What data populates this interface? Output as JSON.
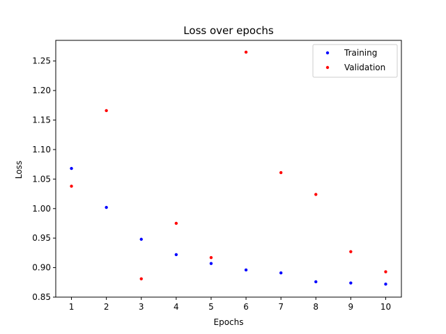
{
  "chart_data": {
    "type": "scatter",
    "title": "Loss over epochs",
    "xlabel": "Epochs",
    "ylabel": "Loss",
    "xlim": [
      0.55,
      10.45
    ],
    "ylim": [
      0.85,
      1.285
    ],
    "xticks": [
      1,
      2,
      3,
      4,
      5,
      6,
      7,
      8,
      9,
      10
    ],
    "yticks": [
      "0.85",
      "0.90",
      "0.95",
      "1.00",
      "1.05",
      "1.10",
      "1.15",
      "1.20",
      "1.25"
    ],
    "grid": false,
    "legend_position": "top-right",
    "series": [
      {
        "name": "Training",
        "color": "#0000ff",
        "x": [
          1,
          2,
          3,
          4,
          5,
          6,
          7,
          8,
          9,
          10
        ],
        "y": [
          1.068,
          1.002,
          0.948,
          0.922,
          0.907,
          0.896,
          0.891,
          0.876,
          0.874,
          0.872
        ]
      },
      {
        "name": "Validation",
        "color": "#ff0000",
        "x": [
          1,
          2,
          3,
          4,
          5,
          6,
          7,
          8,
          9,
          10
        ],
        "y": [
          1.038,
          1.166,
          0.881,
          0.975,
          0.917,
          1.265,
          1.061,
          1.024,
          0.927,
          0.893
        ]
      }
    ]
  }
}
